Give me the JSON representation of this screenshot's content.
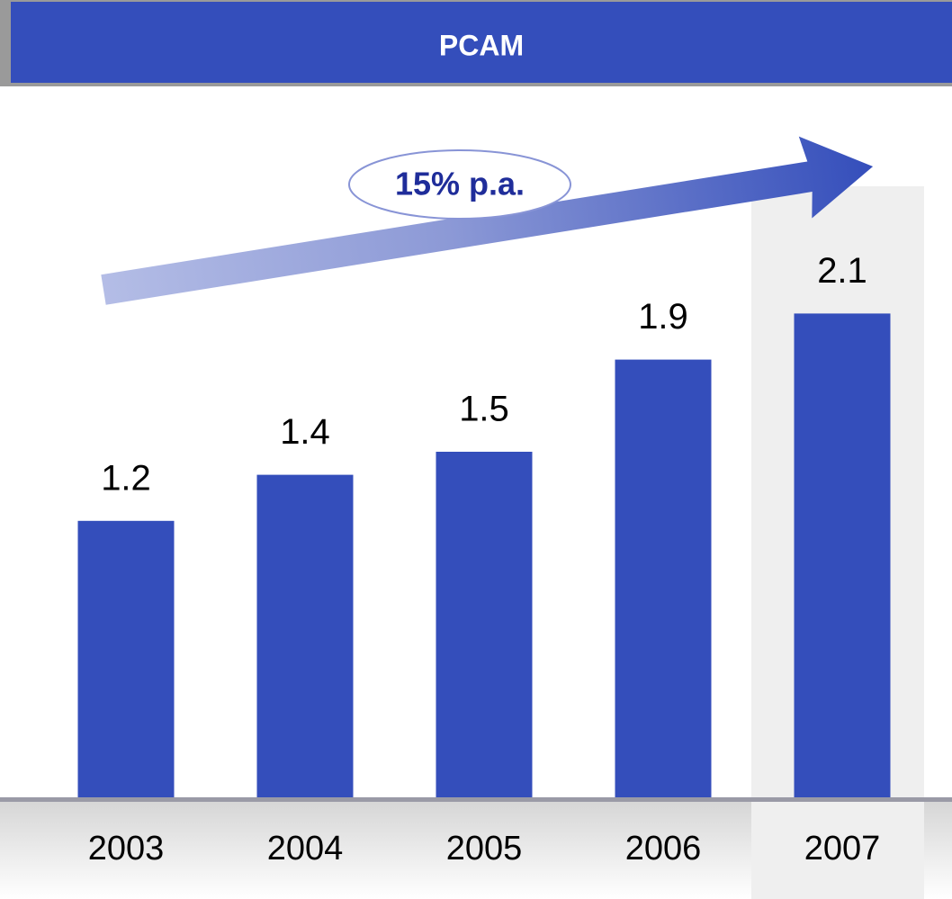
{
  "chart_data": {
    "type": "bar",
    "title": "PCAM",
    "annotation": "15% p.a.",
    "categories": [
      "2003",
      "2004",
      "2005",
      "2006",
      "2007"
    ],
    "values": [
      1.2,
      1.4,
      1.5,
      1.9,
      2.1
    ],
    "color": "#344ebb"
  }
}
